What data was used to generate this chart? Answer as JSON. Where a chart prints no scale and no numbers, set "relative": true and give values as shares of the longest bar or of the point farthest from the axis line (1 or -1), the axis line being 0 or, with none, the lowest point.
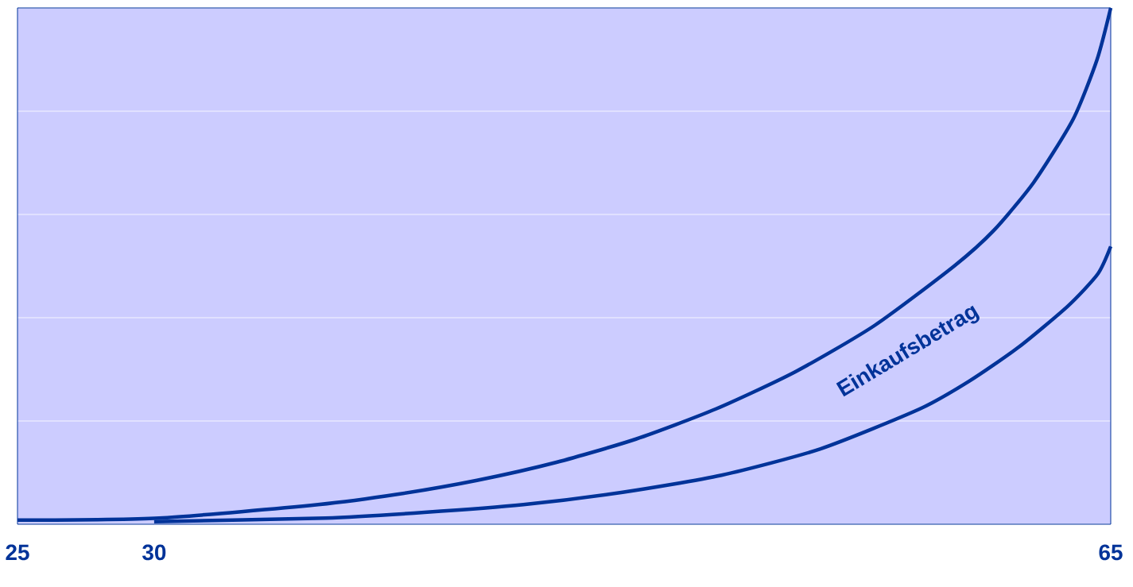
{
  "chart_data": {
    "type": "line",
    "relative": true,
    "grid": "y",
    "marker": "none",
    "line_style": "solid",
    "xlim": [
      25,
      65
    ],
    "xticks": [
      25,
      30,
      65
    ],
    "annotations": [
      "Einkaufsbetrag"
    ],
    "series": [
      {
        "color": "#003399",
        "x": [
          25,
          30.18,
          36.0,
          38.9,
          41.81,
          44.72,
          47.63,
          50.54,
          53.45,
          56.36,
          59.27,
          60.72,
          62.18,
          63.63,
          64.5,
          65
        ],
        "values": [
          0.008,
          0.012,
          0.038,
          0.058,
          0.085,
          0.12,
          0.165,
          0.223,
          0.295,
          0.385,
          0.5,
          0.569,
          0.662,
          0.785,
          0.9,
          1
        ]
      },
      {
        "color": "#003399",
        "x": [
          30,
          36.27,
          39.89,
          43.51,
          47.14,
          50.76,
          54.38,
          58.0,
          59.82,
          61.63,
          63.44,
          64.53,
          65
        ],
        "values": [
          0.005,
          0.012,
          0.023,
          0.038,
          0.062,
          0.095,
          0.146,
          0.223,
          0.277,
          0.343,
          0.423,
          0.485,
          0.538
        ]
      }
    ]
  }
}
